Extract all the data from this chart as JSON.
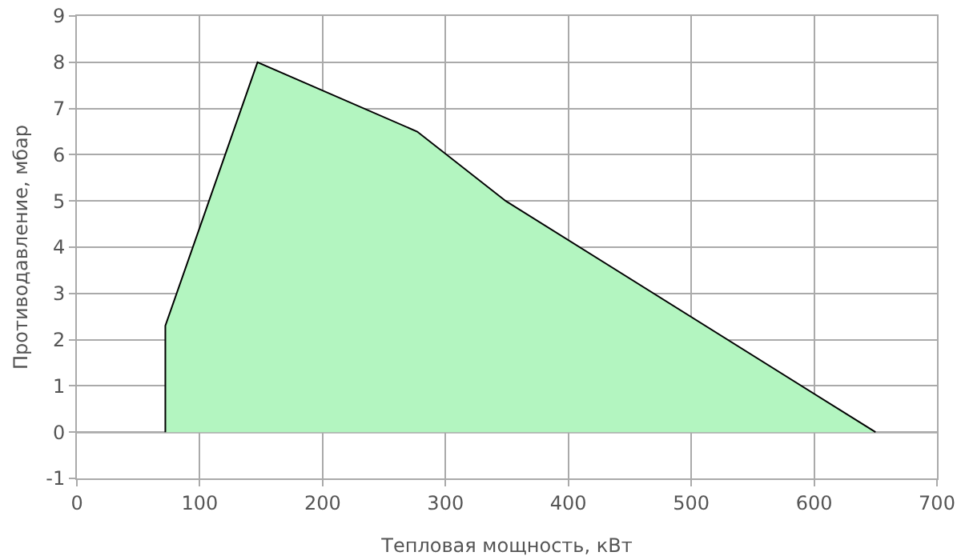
{
  "chart_data": {
    "type": "area",
    "xlabel": "Тепловая мощность, кВт",
    "ylabel": "Противодавление, мбар",
    "series": [
      {
        "color": "#b3f5c0",
        "x": [
          72,
          72,
          147,
          277,
          349,
          650
        ],
        "values": [
          0,
          2.3,
          8,
          6.5,
          5,
          0
        ]
      }
    ],
    "xlim": [
      0,
      700
    ],
    "xticks": [
      0,
      100,
      200,
      300,
      400,
      500,
      600,
      700
    ],
    "ylim": [
      -1,
      9
    ],
    "yticks": [
      -1,
      0,
      1,
      2,
      3,
      4,
      5,
      6,
      7,
      8,
      9
    ],
    "ref_lines": [
      {
        "axis": "y",
        "value": 0,
        "color": "#000000"
      }
    ],
    "grid": true,
    "marker": "none",
    "line_style": "solid"
  }
}
